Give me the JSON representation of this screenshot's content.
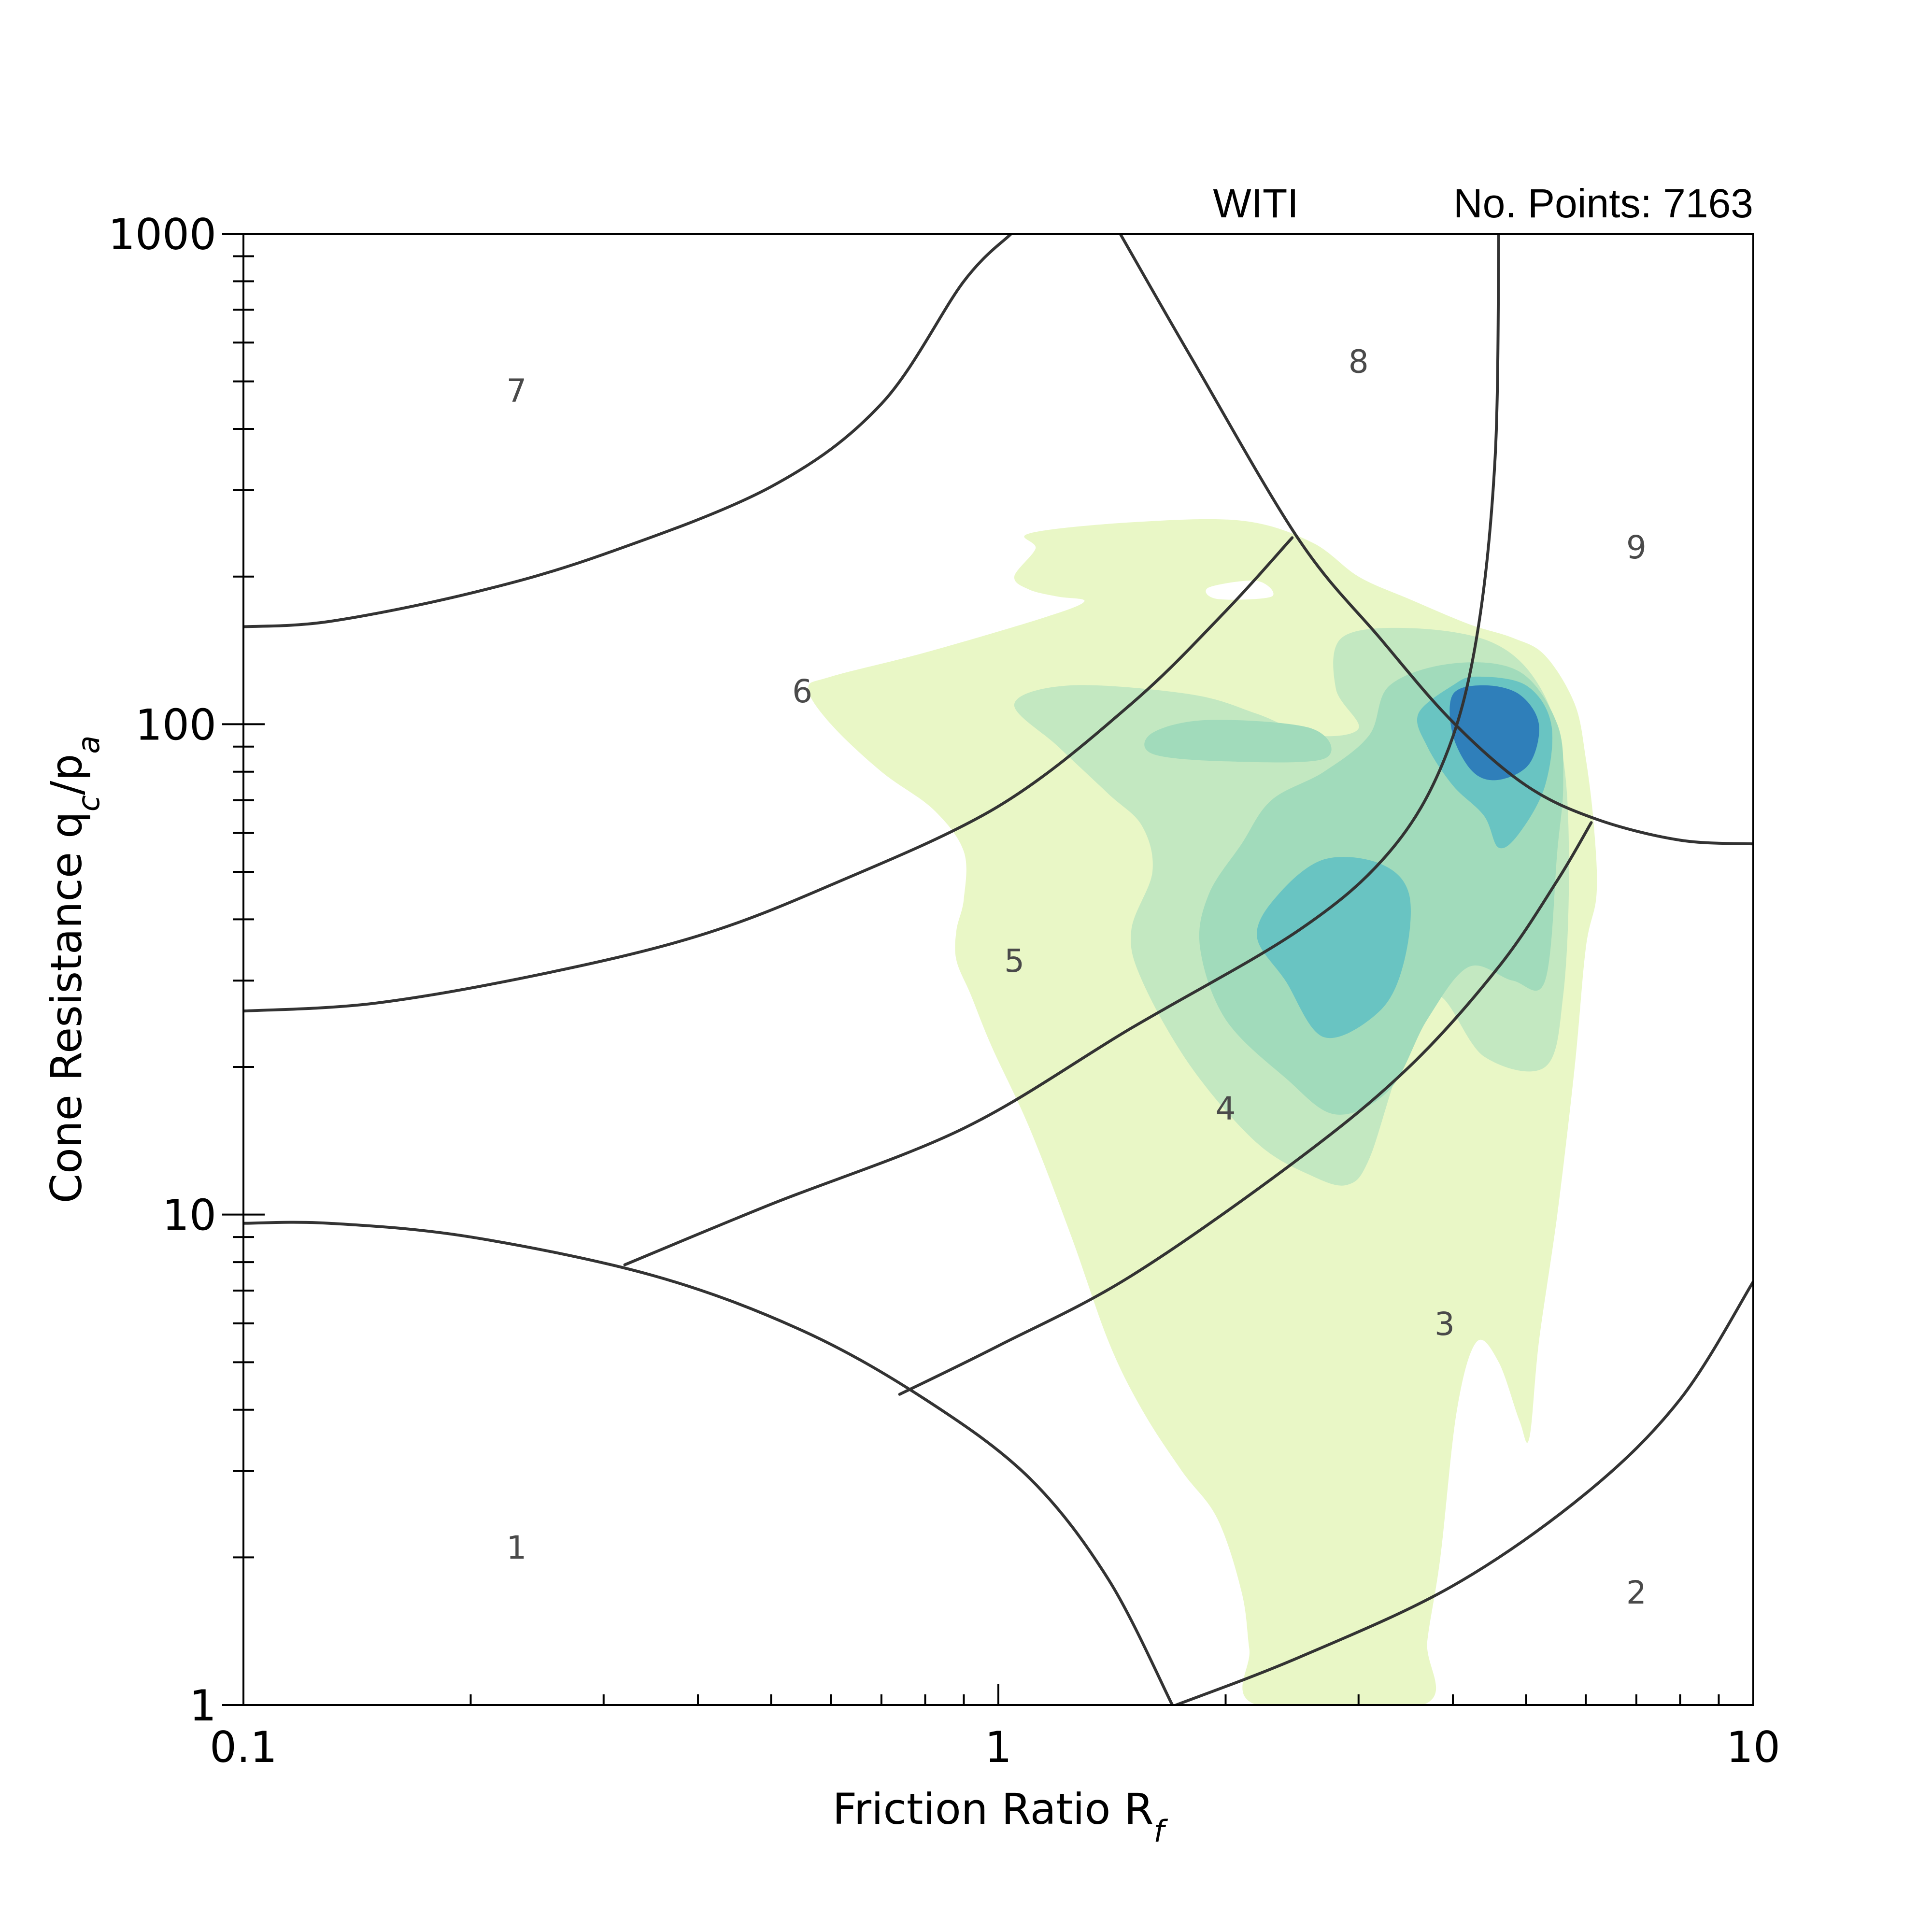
{
  "chart_data": {
    "type": "contour",
    "header": {
      "site": "WITI",
      "points": "No. Points: 7163"
    },
    "xlabel": "Friction Ratio R",
    "xlabel_sub": "f",
    "ylabel": "Cone Resistance q",
    "ylabel_sub1": "c",
    "ylabel_mid": "/p",
    "ylabel_sub2": "a",
    "xscale": "log",
    "yscale": "log",
    "xlim": [
      0.1,
      10
    ],
    "ylim": [
      1,
      1000
    ],
    "x_ticks": [
      {
        "value": 0.1,
        "label": "0.1"
      },
      {
        "value": 1,
        "label": "1"
      },
      {
        "value": 10,
        "label": "10"
      }
    ],
    "y_ticks": [
      {
        "value": 1,
        "label": "1"
      },
      {
        "value": 10,
        "label": "10"
      },
      {
        "value": 100,
        "label": "100"
      },
      {
        "value": 1000,
        "label": "1000"
      }
    ],
    "colors": {
      "level1": "#e9f7c6",
      "level2": "#c3e8c1",
      "level3": "#a1dbbb",
      "level4": "#69c4c2",
      "level5": "#2f7fba",
      "boundary": "#333333"
    },
    "zones": [
      {
        "label": "1",
        "x": 0.23,
        "y": 2.1
      },
      {
        "label": "2",
        "x": 7.0,
        "y": 1.7
      },
      {
        "label": "3",
        "x": 3.9,
        "y": 6.0
      },
      {
        "label": "4",
        "x": 2.0,
        "y": 16.5
      },
      {
        "label": "5",
        "x": 1.05,
        "y": 33
      },
      {
        "label": "6",
        "x": 0.55,
        "y": 117
      },
      {
        "label": "7",
        "x": 0.23,
        "y": 480
      },
      {
        "label": "8",
        "x": 3.0,
        "y": 550
      },
      {
        "label": "9",
        "x": 7.0,
        "y": 230
      }
    ],
    "boundaries": [
      [
        [
          0.1,
          158
        ],
        [
          0.13,
          162
        ],
        [
          0.2,
          185
        ],
        [
          0.3,
          222
        ],
        [
          0.5,
          305
        ],
        [
          0.7,
          450
        ],
        [
          0.9,
          800
        ],
        [
          1.04,
          1000
        ]
      ],
      [
        [
          0.1,
          26
        ],
        [
          0.15,
          27
        ],
        [
          0.25,
          31
        ],
        [
          0.4,
          37
        ],
        [
          0.6,
          47
        ],
        [
          1.0,
          68
        ],
        [
          1.5,
          110
        ],
        [
          2.0,
          170
        ],
        [
          2.45,
          240
        ]
      ],
      [
        [
          1.45,
          1000
        ],
        [
          1.8,
          560
        ],
        [
          2.5,
          238
        ],
        [
          3.2,
          150
        ],
        [
          4.0,
          101
        ],
        [
          5.0,
          75
        ],
        [
          6.2,
          64
        ],
        [
          8.0,
          58
        ],
        [
          10.0,
          57
        ]
      ],
      [
        [
          0.1,
          9.6
        ],
        [
          0.13,
          9.6
        ],
        [
          0.2,
          9.0
        ],
        [
          0.35,
          7.5
        ],
        [
          0.55,
          5.8
        ],
        [
          0.8,
          4.2
        ],
        [
          1.1,
          2.9
        ],
        [
          1.4,
          1.8
        ],
        [
          1.7,
          1.0
        ]
      ],
      [
        [
          0.32,
          7.9
        ],
        [
          0.5,
          10.5
        ],
        [
          0.9,
          15.0
        ],
        [
          1.5,
          24.0
        ],
        [
          2.5,
          38.0
        ],
        [
          3.3,
          55.0
        ],
        [
          3.9,
          85.0
        ],
        [
          4.3,
          150.0
        ],
        [
          4.55,
          350.0
        ],
        [
          4.6,
          1000.0
        ]
      ],
      [
        [
          0.74,
          4.3
        ],
        [
          1.0,
          5.4
        ],
        [
          1.5,
          7.5
        ],
        [
          2.5,
          13.0
        ],
        [
          3.5,
          20.0
        ],
        [
          4.6,
          32.0
        ],
        [
          5.5,
          48.0
        ],
        [
          6.1,
          63.0
        ]
      ],
      [
        [
          1.72,
          1.0
        ],
        [
          2.5,
          1.25
        ],
        [
          4.0,
          1.75
        ],
        [
          6.0,
          2.7
        ],
        [
          8.0,
          4.2
        ],
        [
          10.0,
          7.3
        ]
      ]
    ],
    "contours": [
      {
        "level": 1,
        "polygon": [
          [
            2.2,
            1.0
          ],
          [
            2.15,
            1.3
          ],
          [
            2.1,
            1.7
          ],
          [
            1.95,
            2.4
          ],
          [
            1.75,
            3.0
          ],
          [
            1.55,
            4.0
          ],
          [
            1.4,
            5.5
          ],
          [
            1.25,
            9
          ],
          [
            1.1,
            15
          ],
          [
            0.98,
            22
          ],
          [
            0.92,
            28
          ],
          [
            0.88,
            33
          ],
          [
            0.88,
            38
          ],
          [
            0.9,
            44
          ],
          [
            0.9,
            55
          ],
          [
            0.82,
            67
          ],
          [
            0.7,
            80
          ],
          [
            0.6,
            100
          ],
          [
            0.56,
            118
          ],
          [
            0.6,
            125
          ],
          [
            0.8,
            140
          ],
          [
            1.15,
            165
          ],
          [
            1.3,
            178
          ],
          [
            1.2,
            182
          ],
          [
            1.1,
            188
          ],
          [
            1.05,
            200
          ],
          [
            1.12,
            228
          ],
          [
            1.1,
            245
          ],
          [
            1.5,
            258
          ],
          [
            2.1,
            260
          ],
          [
            2.6,
            235
          ],
          [
            3.0,
            200
          ],
          [
            3.5,
            180
          ],
          [
            4.2,
            160
          ],
          [
            4.8,
            150
          ],
          [
            5.3,
            138
          ],
          [
            5.8,
            110
          ],
          [
            6.0,
            85
          ],
          [
            6.15,
            62
          ],
          [
            6.2,
            45
          ],
          [
            6.0,
            35
          ],
          [
            5.8,
            20
          ],
          [
            5.5,
            10
          ],
          [
            5.2,
            5.5
          ],
          [
            5.05,
            3.5
          ],
          [
            4.9,
            3.8
          ],
          [
            4.6,
            5.0
          ],
          [
            4.3,
            5.5
          ],
          [
            4.05,
            4.0
          ],
          [
            3.85,
            2.0
          ],
          [
            3.7,
            1.35
          ],
          [
            3.65,
            1.0
          ]
        ]
      },
      {
        "level": 2,
        "polygon": [
          [
            2.9,
            11.5
          ],
          [
            2.6,
            12.0
          ],
          [
            2.2,
            14.0
          ],
          [
            1.8,
            20.0
          ],
          [
            1.55,
            30.0
          ],
          [
            1.5,
            38.0
          ],
          [
            1.6,
            50.0
          ],
          [
            1.55,
            62.0
          ],
          [
            1.4,
            72.0
          ],
          [
            1.2,
            90.0
          ],
          [
            1.05,
            110.0
          ],
          [
            1.25,
            120.0
          ],
          [
            1.8,
            115.0
          ],
          [
            2.2,
            105.0
          ],
          [
            2.6,
            95.0
          ],
          [
            3.0,
            98.0
          ],
          [
            2.8,
            118.0
          ],
          [
            2.85,
            150.0
          ],
          [
            3.5,
            157.0
          ],
          [
            4.5,
            147.0
          ],
          [
            5.2,
            120.0
          ],
          [
            5.6,
            85.0
          ],
          [
            5.7,
            50.0
          ],
          [
            5.6,
            28.0
          ],
          [
            5.3,
            20.0
          ],
          [
            4.4,
            21.0
          ],
          [
            3.8,
            28.0
          ],
          [
            3.4,
            20.0
          ],
          [
            3.1,
            13.0
          ]
        ]
      },
      {
        "level": 3,
        "polygon": [
          [
            2.8,
            16.0
          ],
          [
            2.4,
            19.0
          ],
          [
            2.0,
            25.0
          ],
          [
            1.85,
            35.0
          ],
          [
            1.9,
            45.0
          ],
          [
            2.1,
            57.0
          ],
          [
            2.3,
            70.0
          ],
          [
            2.7,
            80.0
          ],
          [
            3.1,
            95.0
          ],
          [
            3.3,
            120.0
          ],
          [
            4.0,
            133.0
          ],
          [
            4.9,
            128.0
          ],
          [
            5.5,
            100.0
          ],
          [
            5.6,
            75.0
          ],
          [
            5.5,
            55.0
          ],
          [
            5.3,
            30.0
          ],
          [
            4.8,
            30.0
          ],
          [
            4.2,
            32.0
          ],
          [
            3.7,
            25.0
          ],
          [
            3.3,
            18.0
          ]
        ],
        "blob": [
          [
            1.6,
            87.0
          ],
          [
            2.0,
            84.0
          ],
          [
            2.7,
            85.0
          ],
          [
            2.6,
            98.0
          ],
          [
            1.9,
            102.0
          ],
          [
            1.6,
            96.0
          ]
        ]
      },
      {
        "level": 4,
        "polygon": [
          [
            2.4,
            30.0
          ],
          [
            2.2,
            37.0
          ],
          [
            2.35,
            45.0
          ],
          [
            2.7,
            53.0
          ],
          [
            3.2,
            52.0
          ],
          [
            3.5,
            45.0
          ],
          [
            3.45,
            33.0
          ],
          [
            3.2,
            26.0
          ],
          [
            2.7,
            23.0
          ]
        ],
        "blob": [
          [
            4.0,
            120.0
          ],
          [
            4.3,
            125.0
          ],
          [
            5.0,
            120.0
          ],
          [
            5.4,
            100.0
          ],
          [
            5.3,
            75.0
          ],
          [
            4.9,
            60.0
          ],
          [
            4.6,
            56.0
          ],
          [
            4.4,
            65.0
          ],
          [
            4.0,
            75.0
          ],
          [
            3.7,
            90.0
          ],
          [
            3.6,
            105.0
          ]
        ]
      },
      {
        "level": 5,
        "polygon": [
          [
            4.0,
            115.0
          ],
          [
            4.4,
            120.0
          ],
          [
            4.9,
            115.0
          ],
          [
            5.2,
            100.0
          ],
          [
            5.05,
            83.0
          ],
          [
            4.6,
            77.0
          ],
          [
            4.25,
            80.0
          ],
          [
            4.0,
            95.0
          ]
        ]
      }
    ]
  }
}
